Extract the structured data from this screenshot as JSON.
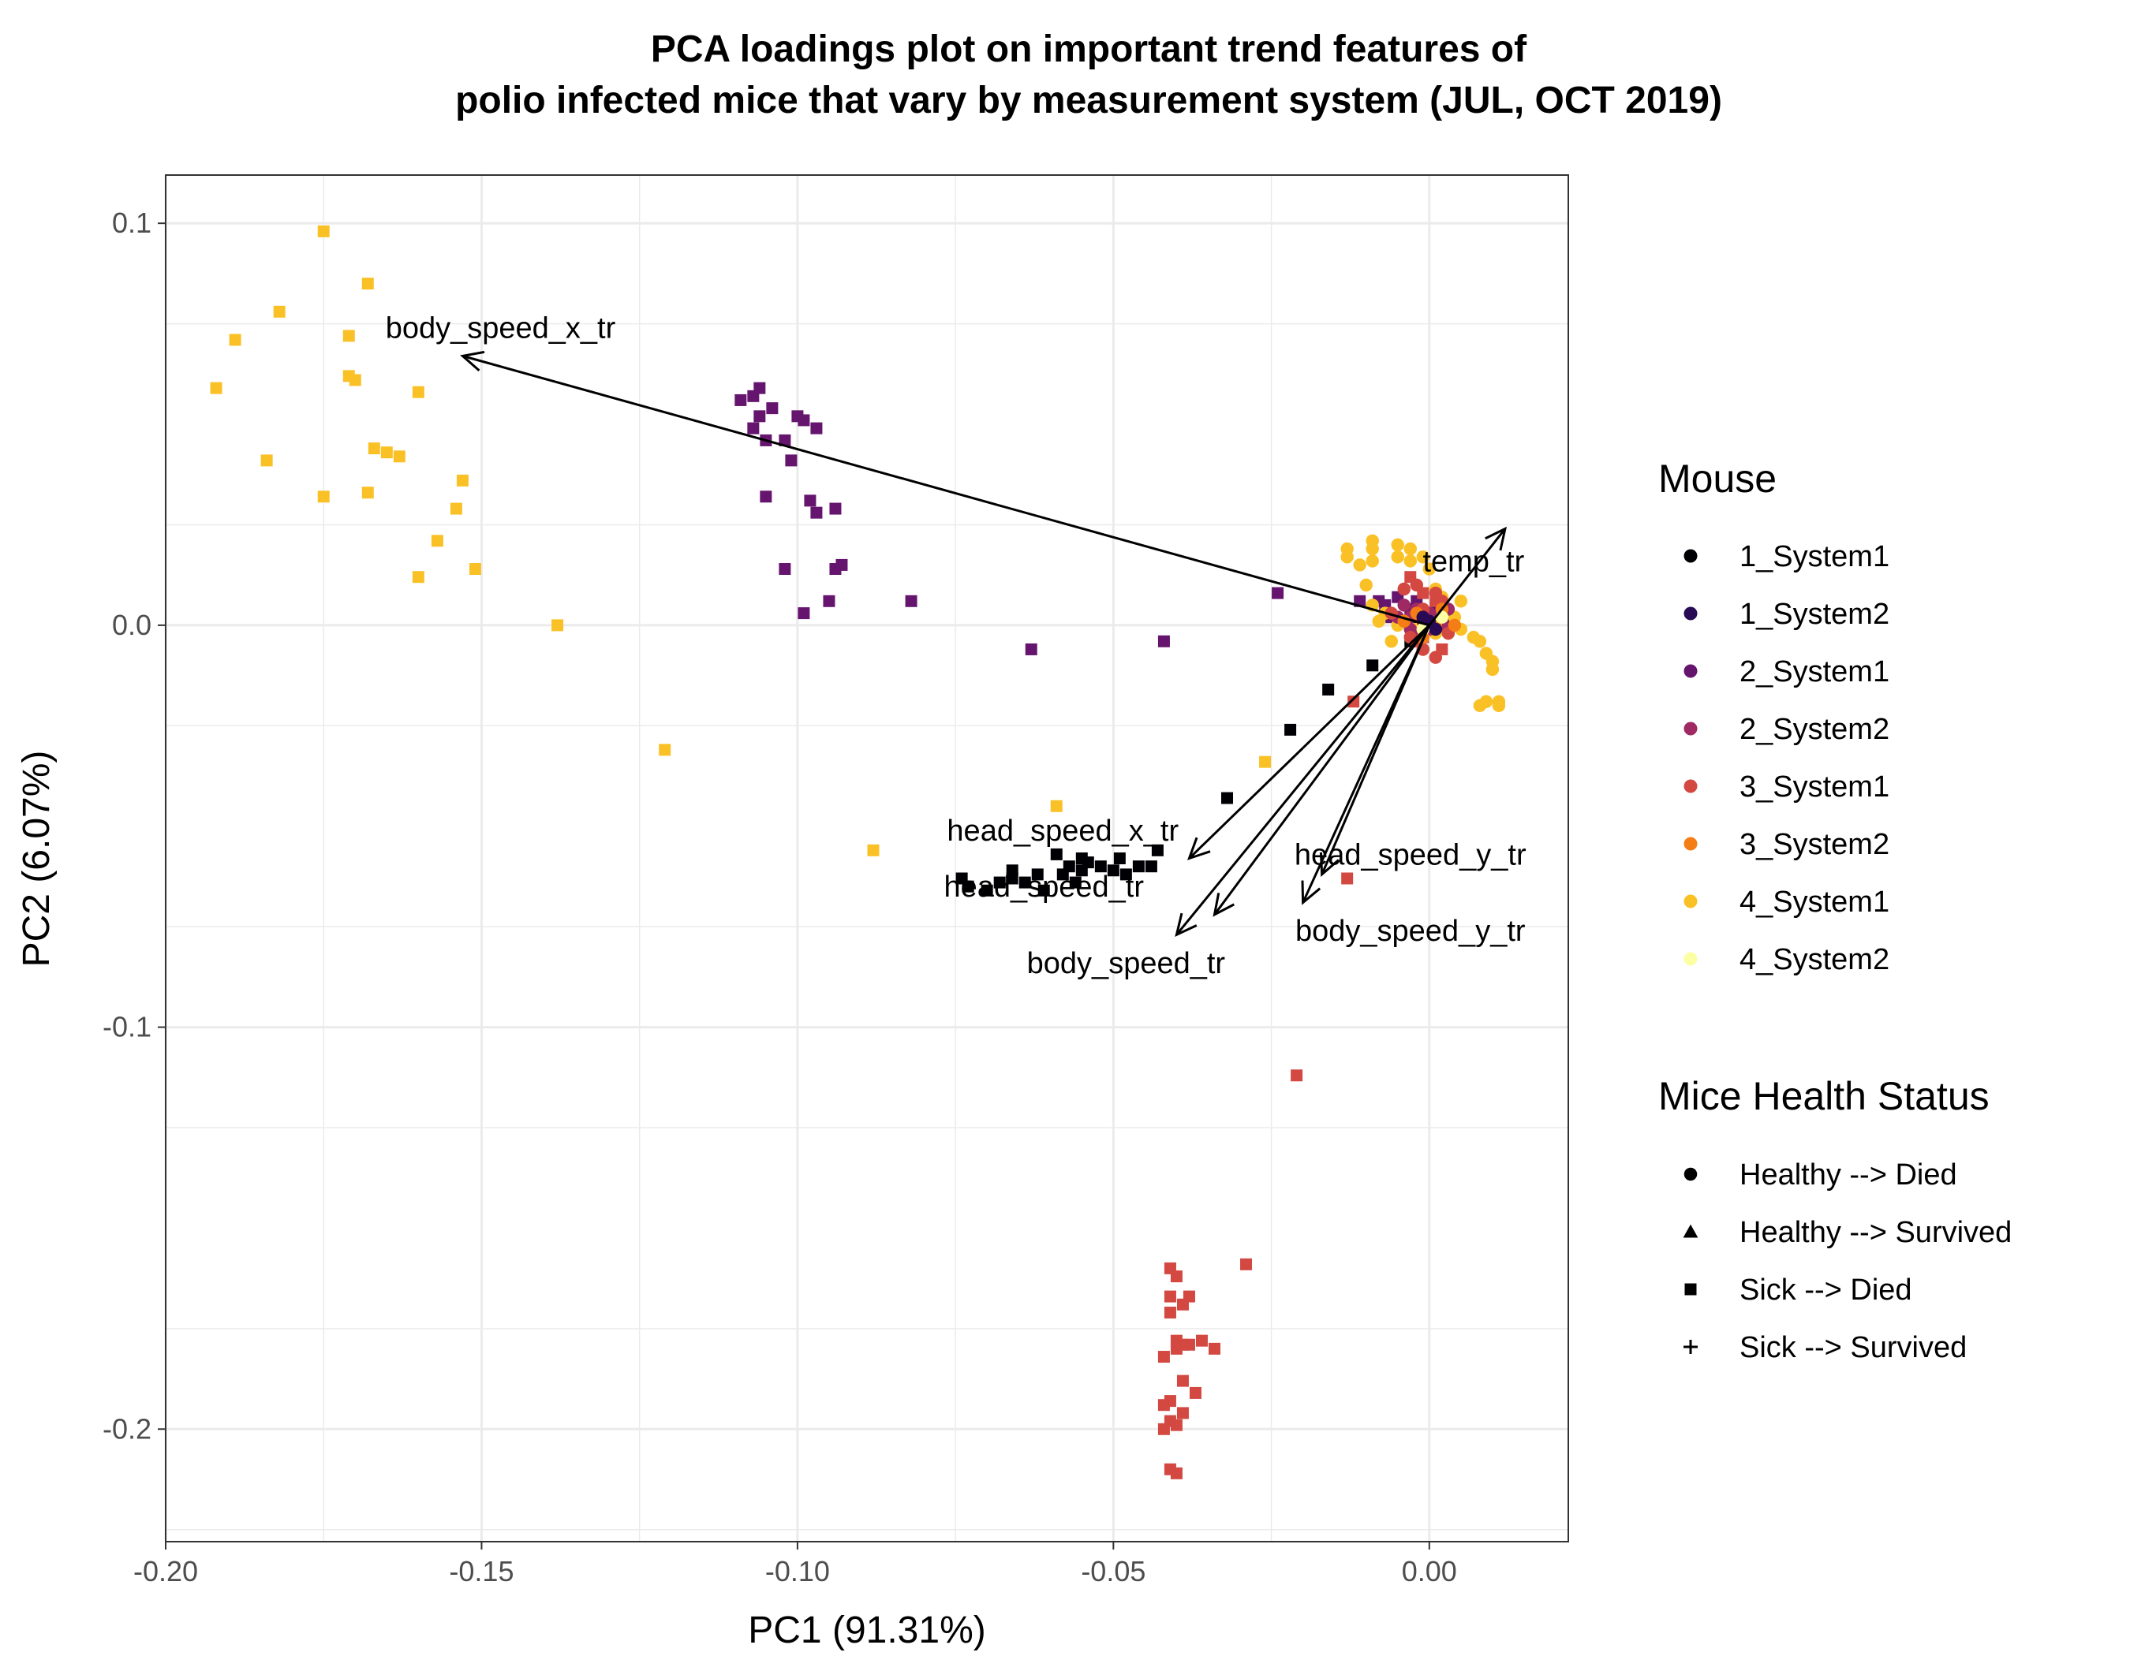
{
  "chart_data": {
    "type": "scatter",
    "title_line1": "PCA loadings plot on important trend features of",
    "title_line2": "polio infected mice that vary by measurement system (JUL, OCT 2019)",
    "xlabel": "PC1 (91.31%)",
    "ylabel": "PC2 (6.07%)",
    "xlim": [
      -0.2,
      0.022
    ],
    "ylim": [
      -0.228,
      0.112
    ],
    "x_ticks": [
      -0.2,
      -0.15,
      -0.1,
      -0.05,
      0.0
    ],
    "x_tick_labels": [
      "-0.20",
      "-0.15",
      "-0.10",
      "-0.05",
      "0.00"
    ],
    "y_ticks": [
      0.1,
      0.0,
      -0.1,
      -0.2
    ],
    "y_tick_labels": [
      "0.1",
      "0.0",
      "-0.1",
      "-0.2"
    ],
    "grid": true,
    "legend_position": "right",
    "mouse_legend": {
      "title": "Mouse",
      "entries": [
        {
          "label": "1_System1",
          "color": "#000004"
        },
        {
          "label": "1_System2",
          "color": "#280B54"
        },
        {
          "label": "2_System1",
          "color": "#65156E"
        },
        {
          "label": "2_System2",
          "color": "#9F2A63"
        },
        {
          "label": "3_System1",
          "color": "#D44842"
        },
        {
          "label": "3_System2",
          "color": "#F57D15"
        },
        {
          "label": "4_System1",
          "color": "#FAC127"
        },
        {
          "label": "4_System2",
          "color": "#FCFFA4"
        }
      ]
    },
    "status_legend": {
      "title": "Mice Health Status",
      "entries": [
        {
          "label": "Healthy --> Died",
          "shape": "circle"
        },
        {
          "label": "Healthy --> Survived",
          "shape": "triangle"
        },
        {
          "label": "Sick --> Died",
          "shape": "square"
        },
        {
          "label": "Sick --> Survived",
          "shape": "plus"
        }
      ]
    },
    "loadings": [
      {
        "name": "body_speed_x_tr",
        "x": -0.153,
        "y": 0.067,
        "lx": -0.147,
        "ly": 0.074
      },
      {
        "name": "temp_tr",
        "x": 0.012,
        "y": 0.024,
        "lx": 0.007,
        "ly": 0.016
      },
      {
        "name": "head_speed_x_tr",
        "x": -0.038,
        "y": -0.058,
        "lx": -0.058,
        "ly": -0.051
      },
      {
        "name": "head_speed_tr",
        "x": -0.034,
        "y": -0.072,
        "lx": -0.061,
        "ly": -0.065
      },
      {
        "name": "body_speed_tr",
        "x": -0.04,
        "y": -0.077,
        "lx": -0.048,
        "ly": -0.084
      },
      {
        "name": "head_speed_y_tr",
        "x": -0.02,
        "y": -0.069,
        "lx": -0.003,
        "ly": -0.057
      },
      {
        "name": "body_speed_y_tr",
        "x": -0.017,
        "y": -0.062,
        "lx": -0.003,
        "ly": -0.076
      }
    ],
    "series": [
      {
        "mouse": "4_System1",
        "status": "Sick --> Died",
        "color": "#FAC127",
        "shape": "square",
        "points": [
          [
            -0.175,
            0.098
          ],
          [
            -0.168,
            0.085
          ],
          [
            -0.182,
            0.078
          ],
          [
            -0.171,
            0.072
          ],
          [
            -0.189,
            0.071
          ],
          [
            -0.171,
            0.062
          ],
          [
            -0.192,
            0.059
          ],
          [
            -0.16,
            0.058
          ],
          [
            -0.17,
            0.061
          ],
          [
            -0.167,
            0.044
          ],
          [
            -0.165,
            0.043
          ],
          [
            -0.163,
            0.042
          ],
          [
            -0.184,
            0.041
          ],
          [
            -0.153,
            0.036
          ],
          [
            -0.175,
            0.032
          ],
          [
            -0.168,
            0.033
          ],
          [
            -0.154,
            0.029
          ],
          [
            -0.157,
            0.021
          ],
          [
            -0.151,
            0.014
          ],
          [
            -0.16,
            0.012
          ],
          [
            -0.138,
            0.0
          ],
          [
            -0.121,
            -0.031
          ],
          [
            -0.088,
            -0.056
          ],
          [
            -0.059,
            -0.045
          ],
          [
            -0.026,
            -0.034
          ]
        ]
      },
      {
        "mouse": "2_System1",
        "status": "Sick --> Died",
        "color": "#65156E",
        "shape": "square",
        "points": [
          [
            -0.106,
            0.059
          ],
          [
            -0.107,
            0.057
          ],
          [
            -0.109,
            0.056
          ],
          [
            -0.104,
            0.054
          ],
          [
            -0.106,
            0.052
          ],
          [
            -0.1,
            0.052
          ],
          [
            -0.099,
            0.051
          ],
          [
            -0.097,
            0.049
          ],
          [
            -0.107,
            0.049
          ],
          [
            -0.105,
            0.046
          ],
          [
            -0.102,
            0.046
          ],
          [
            -0.101,
            0.041
          ],
          [
            -0.098,
            0.031
          ],
          [
            -0.105,
            0.032
          ],
          [
            -0.097,
            0.028
          ],
          [
            -0.094,
            0.029
          ],
          [
            -0.093,
            0.015
          ],
          [
            -0.094,
            0.014
          ],
          [
            -0.102,
            0.014
          ],
          [
            -0.095,
            0.006
          ],
          [
            -0.099,
            0.003
          ],
          [
            -0.082,
            0.006
          ],
          [
            -0.063,
            -0.006
          ],
          [
            -0.042,
            -0.004
          ],
          [
            -0.024,
            0.008
          ],
          [
            -0.011,
            0.006
          ],
          [
            -0.007,
            0.005
          ],
          [
            -0.005,
            0.007
          ],
          [
            -0.003,
            0.004
          ],
          [
            -0.006,
            0.002
          ],
          [
            -0.002,
            0.006
          ],
          [
            0.001,
            0.005
          ],
          [
            0.002,
            0.003
          ],
          [
            -0.004,
            0.001
          ],
          [
            -0.008,
            0.006
          ],
          [
            0.003,
            0.001
          ]
        ]
      },
      {
        "mouse": "1_System1",
        "status": "Sick --> Died",
        "color": "#000004",
        "shape": "square",
        "points": [
          [
            -0.074,
            -0.063
          ],
          [
            -0.073,
            -0.065
          ],
          [
            -0.07,
            -0.066
          ],
          [
            -0.068,
            -0.064
          ],
          [
            -0.066,
            -0.061
          ],
          [
            -0.066,
            -0.063
          ],
          [
            -0.064,
            -0.064
          ],
          [
            -0.062,
            -0.062
          ],
          [
            -0.061,
            -0.066
          ],
          [
            -0.058,
            -0.062
          ],
          [
            -0.057,
            -0.06
          ],
          [
            -0.056,
            -0.064
          ],
          [
            -0.059,
            -0.057
          ],
          [
            -0.055,
            -0.058
          ],
          [
            -0.055,
            -0.061
          ],
          [
            -0.054,
            -0.059
          ],
          [
            -0.052,
            -0.06
          ],
          [
            -0.05,
            -0.061
          ],
          [
            -0.049,
            -0.058
          ],
          [
            -0.048,
            -0.062
          ],
          [
            -0.046,
            -0.06
          ],
          [
            -0.044,
            -0.06
          ],
          [
            -0.043,
            -0.056
          ],
          [
            -0.032,
            -0.043
          ],
          [
            -0.022,
            -0.026
          ],
          [
            -0.016,
            -0.016
          ],
          [
            -0.009,
            -0.01
          ],
          [
            -0.003,
            -0.004
          ],
          [
            -0.001,
            -0.002
          ],
          [
            -0.002,
            0.002
          ],
          [
            0.001,
            -0.001
          ]
        ]
      },
      {
        "mouse": "3_System1",
        "status": "Sick --> Died",
        "color": "#D44842",
        "shape": "square",
        "points": [
          [
            -0.021,
            -0.112
          ],
          [
            -0.041,
            -0.16
          ],
          [
            -0.029,
            -0.159
          ],
          [
            -0.04,
            -0.162
          ],
          [
            -0.041,
            -0.167
          ],
          [
            -0.038,
            -0.167
          ],
          [
            -0.039,
            -0.169
          ],
          [
            -0.041,
            -0.171
          ],
          [
            -0.039,
            -0.179
          ],
          [
            -0.04,
            -0.178
          ],
          [
            -0.036,
            -0.178
          ],
          [
            -0.034,
            -0.18
          ],
          [
            -0.038,
            -0.179
          ],
          [
            -0.042,
            -0.182
          ],
          [
            -0.04,
            -0.18
          ],
          [
            -0.039,
            -0.188
          ],
          [
            -0.037,
            -0.191
          ],
          [
            -0.041,
            -0.193
          ],
          [
            -0.042,
            -0.194
          ],
          [
            -0.039,
            -0.196
          ],
          [
            -0.041,
            -0.198
          ],
          [
            -0.04,
            -0.199
          ],
          [
            -0.042,
            -0.2
          ],
          [
            -0.041,
            -0.21
          ],
          [
            -0.04,
            -0.211
          ],
          [
            -0.013,
            -0.063
          ],
          [
            -0.012,
            -0.019
          ],
          [
            -0.001,
            -0.003
          ],
          [
            0.002,
            -0.006
          ],
          [
            -0.003,
            0.012
          ],
          [
            -0.001,
            0.008
          ],
          [
            0.002,
            0.001
          ],
          [
            -0.002,
            -0.004
          ],
          [
            0.001,
            0.006
          ]
        ]
      },
      {
        "mouse": "4_System1",
        "status": "Healthy --> Died",
        "color": "#FAC127",
        "shape": "circle",
        "points": [
          [
            -0.013,
            0.019
          ],
          [
            -0.013,
            0.017
          ],
          [
            -0.009,
            0.021
          ],
          [
            -0.009,
            0.019
          ],
          [
            -0.009,
            0.016
          ],
          [
            -0.005,
            0.02
          ],
          [
            -0.005,
            0.017
          ],
          [
            -0.003,
            0.019
          ],
          [
            -0.003,
            0.016
          ],
          [
            -0.001,
            0.017
          ],
          [
            0.0,
            0.014
          ],
          [
            -0.011,
            0.015
          ],
          [
            -0.01,
            0.01
          ],
          [
            -0.009,
            0.005
          ],
          [
            -0.008,
            0.001
          ],
          [
            -0.007,
            0.003
          ],
          [
            -0.005,
            0.0
          ],
          [
            -0.003,
            -0.003
          ],
          [
            0.001,
            0.009
          ],
          [
            0.002,
            0.007
          ],
          [
            0.003,
            0.004
          ],
          [
            0.003,
            -0.002
          ],
          [
            0.004,
            0.002
          ],
          [
            0.005,
            0.006
          ],
          [
            0.005,
            -0.001
          ],
          [
            0.007,
            -0.003
          ],
          [
            0.008,
            -0.004
          ],
          [
            0.009,
            -0.007
          ],
          [
            0.01,
            -0.009
          ],
          [
            0.01,
            -0.011
          ],
          [
            0.008,
            -0.02
          ],
          [
            0.009,
            -0.019
          ],
          [
            0.011,
            -0.019
          ],
          [
            0.011,
            -0.02
          ],
          [
            -0.006,
            -0.004
          ],
          [
            -0.002,
            -0.001
          ],
          [
            0.001,
            -0.002
          ]
        ]
      },
      {
        "mouse": "2_System2",
        "status": "Healthy --> Died",
        "color": "#9F2A63",
        "shape": "circle",
        "points": [
          [
            -0.004,
            0.005
          ],
          [
            -0.003,
            0.002
          ],
          [
            -0.002,
            0.004
          ],
          [
            -0.001,
            0.001
          ],
          [
            0.0,
            0.003
          ],
          [
            0.001,
            0.002
          ],
          [
            0.002,
            0.0
          ],
          [
            -0.005,
            0.002
          ],
          [
            -0.002,
            -0.002
          ],
          [
            0.0,
            -0.001
          ],
          [
            0.003,
            0.004
          ],
          [
            -0.003,
            -0.001
          ]
        ]
      },
      {
        "mouse": "3_System1",
        "status": "Healthy --> Died",
        "color": "#D44842",
        "shape": "circle",
        "points": [
          [
            -0.004,
            0.009
          ],
          [
            -0.002,
            0.01
          ],
          [
            0.001,
            0.008
          ],
          [
            -0.006,
            0.003
          ],
          [
            -0.003,
            -0.003
          ],
          [
            -0.001,
            -0.006
          ],
          [
            0.001,
            -0.008
          ],
          [
            0.003,
            -0.002
          ],
          [
            0.002,
            0.006
          ],
          [
            -0.001,
            0.004
          ]
        ]
      },
      {
        "mouse": "3_System2",
        "status": "Healthy --> Died",
        "color": "#F57D15",
        "shape": "circle",
        "points": [
          [
            -0.002,
            0.003
          ],
          [
            0.001,
            0.0
          ],
          [
            -0.001,
            -0.003
          ],
          [
            0.002,
            0.004
          ],
          [
            0.004,
            0.0
          ],
          [
            -0.004,
            0.001
          ]
        ]
      },
      {
        "mouse": "1_System2",
        "status": "Healthy --> Died",
        "color": "#280B54",
        "shape": "circle",
        "points": [
          [
            0.0,
            0.001
          ],
          [
            -0.001,
            0.002
          ],
          [
            0.001,
            -0.001
          ]
        ]
      },
      {
        "mouse": "4_System2",
        "status": "Healthy --> Died",
        "color": "#FCFFA4",
        "shape": "circle",
        "points": [
          [
            -0.001,
            -0.001
          ],
          [
            0.002,
            0.002
          ]
        ]
      }
    ]
  }
}
